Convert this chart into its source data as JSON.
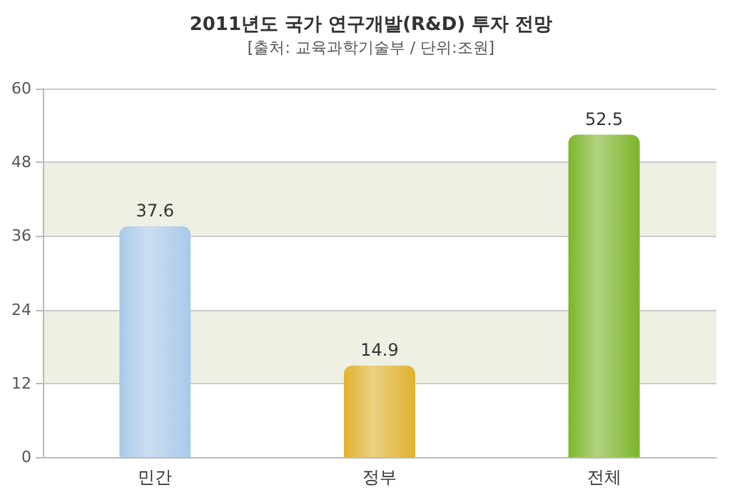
{
  "chart_data": {
    "type": "bar",
    "title": "2011년도 국가 연구개발(R&D) 투자 전망",
    "subtitle": "[출처: 교육과학기술부 / 단위:조원]",
    "categories": [
      "민간",
      "정부",
      "전체"
    ],
    "values": [
      37.6,
      14.9,
      52.5
    ],
    "colors": [
      "#a9c9e9",
      "#e0b22e",
      "#7db52a"
    ],
    "ylim": [
      0,
      60
    ],
    "yticks": [
      0,
      12,
      24,
      36,
      48,
      60
    ],
    "grid": "y",
    "data_labels": true
  }
}
